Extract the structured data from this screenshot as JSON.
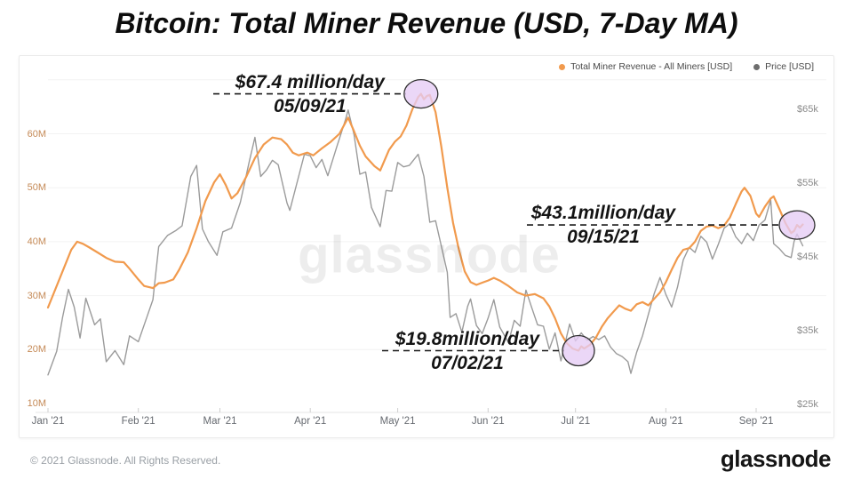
{
  "title": "Bitcoin: Total Miner Revenue (USD, 7-Day MA)",
  "watermark": "glassnode",
  "footer": {
    "copyright": "© 2021 Glassnode. All Rights Reserved.",
    "logo": "glassnode"
  },
  "legend": {
    "items": [
      {
        "label": "Total Miner Revenue - All Miners [USD]",
        "color": "#f19a4d"
      },
      {
        "label": "Price [USD]",
        "color": "#6e6e6e"
      }
    ]
  },
  "chart_data": {
    "type": "line",
    "title": "Bitcoin: Total Miner Revenue (USD, 7-Day MA)",
    "grid": "horizontal",
    "legend_position": "top-right",
    "x_axis": {
      "unit": "date (2021)",
      "labels": [
        {
          "day": 0,
          "label": "Jan '21"
        },
        {
          "day": 31,
          "label": "Feb '21"
        },
        {
          "day": 59,
          "label": "Mar '21"
        },
        {
          "day": 90,
          "label": "Apr '21"
        },
        {
          "day": 120,
          "label": "May '21"
        },
        {
          "day": 151,
          "label": "Jun '21"
        },
        {
          "day": 181,
          "label": "Jul '21"
        },
        {
          "day": 212,
          "label": "Aug '21"
        },
        {
          "day": 243,
          "label": "Sep '21"
        }
      ]
    },
    "y_left": {
      "unit": "USD million per day",
      "range": [
        10,
        70
      ],
      "ticks": [
        {
          "value": 10,
          "label": "10M"
        },
        {
          "value": 20,
          "label": "20M"
        },
        {
          "value": 30,
          "label": "30M"
        },
        {
          "value": 40,
          "label": "40M"
        },
        {
          "value": 50,
          "label": "50M"
        },
        {
          "value": 60,
          "label": "60M"
        }
      ]
    },
    "y_right": {
      "unit": "USD thousand",
      "range": [
        25,
        68
      ],
      "ticks": [
        {
          "value": 25,
          "label": "$25k"
        },
        {
          "value": 35,
          "label": "$35k"
        },
        {
          "value": 45,
          "label": "$45k"
        },
        {
          "value": 55,
          "label": "$55k"
        },
        {
          "value": 65,
          "label": "$65k"
        }
      ]
    },
    "series": [
      {
        "name": "Total Miner Revenue - All Miners [USD]",
        "axis": "left",
        "color": "#f19a4d",
        "width": 2.2,
        "points": [
          [
            "01/01",
            27.8
          ],
          [
            "01/03",
            30.5
          ],
          [
            "01/06",
            34.5
          ],
          [
            "01/09",
            38.5
          ],
          [
            "01/11",
            40.0
          ],
          [
            "01/13",
            39.6
          ],
          [
            "01/15",
            39.0
          ],
          [
            "01/18",
            38.0
          ],
          [
            "01/21",
            37.0
          ],
          [
            "01/24",
            36.3
          ],
          [
            "01/27",
            36.2
          ],
          [
            "01/29",
            35.0
          ],
          [
            "02/01",
            33.0
          ],
          [
            "02/03",
            31.8
          ],
          [
            "02/06",
            31.4
          ],
          [
            "02/08",
            32.3
          ],
          [
            "02/10",
            32.4
          ],
          [
            "02/13",
            33.0
          ],
          [
            "02/15",
            34.8
          ],
          [
            "02/18",
            38.0
          ],
          [
            "02/21",
            42.5
          ],
          [
            "02/24",
            47.5
          ],
          [
            "02/27",
            51.0
          ],
          [
            "03/01",
            52.5
          ],
          [
            "03/03",
            50.5
          ],
          [
            "03/05",
            48.0
          ],
          [
            "03/07",
            49.0
          ],
          [
            "03/10",
            52.0
          ],
          [
            "03/13",
            55.5
          ],
          [
            "03/16",
            58.0
          ],
          [
            "03/19",
            59.3
          ],
          [
            "03/22",
            59.0
          ],
          [
            "03/24",
            58.0
          ],
          [
            "03/26",
            56.5
          ],
          [
            "03/28",
            56.0
          ],
          [
            "03/31",
            56.5
          ],
          [
            "04/02",
            56.0
          ],
          [
            "04/05",
            57.3
          ],
          [
            "04/08",
            58.5
          ],
          [
            "04/11",
            60.0
          ],
          [
            "04/14",
            63.0
          ],
          [
            "04/16",
            60.5
          ],
          [
            "04/18",
            57.8
          ],
          [
            "04/20",
            55.8
          ],
          [
            "04/23",
            54.0
          ],
          [
            "04/25",
            53.2
          ],
          [
            "04/28",
            57.0
          ],
          [
            "04/30",
            58.5
          ],
          [
            "05/02",
            59.5
          ],
          [
            "05/04",
            61.5
          ],
          [
            "05/06",
            64.5
          ],
          [
            "05/08",
            66.8
          ],
          [
            "05/09",
            67.4
          ],
          [
            "05/10",
            66.4
          ],
          [
            "05/11",
            67.0
          ],
          [
            "05/12",
            67.2
          ],
          [
            "05/14",
            64.0
          ],
          [
            "05/16",
            57.5
          ],
          [
            "05/18",
            50.0
          ],
          [
            "05/20",
            43.5
          ],
          [
            "05/22",
            38.5
          ],
          [
            "05/24",
            34.5
          ],
          [
            "05/26",
            32.5
          ],
          [
            "05/28",
            32.0
          ],
          [
            "05/30",
            32.4
          ],
          [
            "06/01",
            32.8
          ],
          [
            "06/03",
            33.3
          ],
          [
            "06/05",
            32.8
          ],
          [
            "06/08",
            31.8
          ],
          [
            "06/11",
            30.6
          ],
          [
            "06/14",
            30.0
          ],
          [
            "06/17",
            30.3
          ],
          [
            "06/20",
            29.5
          ],
          [
            "06/22",
            28.0
          ],
          [
            "06/24",
            25.8
          ],
          [
            "06/26",
            23.0
          ],
          [
            "06/28",
            21.2
          ],
          [
            "06/30",
            20.2
          ],
          [
            "07/02",
            19.8
          ],
          [
            "07/03",
            20.6
          ],
          [
            "07/04",
            20.2
          ],
          [
            "07/06",
            20.9
          ],
          [
            "07/08",
            22.2
          ],
          [
            "07/10",
            24.2
          ],
          [
            "07/12",
            25.8
          ],
          [
            "07/14",
            27.0
          ],
          [
            "07/16",
            28.2
          ],
          [
            "07/18",
            27.6
          ],
          [
            "07/20",
            27.2
          ],
          [
            "07/22",
            28.4
          ],
          [
            "07/24",
            28.8
          ],
          [
            "07/26",
            28.2
          ],
          [
            "07/28",
            29.4
          ],
          [
            "07/30",
            30.6
          ],
          [
            "08/01",
            32.5
          ],
          [
            "08/03",
            34.8
          ],
          [
            "08/05",
            37.0
          ],
          [
            "08/07",
            38.5
          ],
          [
            "08/09",
            38.8
          ],
          [
            "08/11",
            40.0
          ],
          [
            "08/13",
            42.0
          ],
          [
            "08/15",
            42.8
          ],
          [
            "08/17",
            43.0
          ],
          [
            "08/19",
            42.5
          ],
          [
            "08/21",
            43.0
          ],
          [
            "08/23",
            44.5
          ],
          [
            "08/25",
            47.0
          ],
          [
            "08/27",
            49.3
          ],
          [
            "08/28",
            50.0
          ],
          [
            "08/30",
            48.5
          ],
          [
            "09/01",
            45.2
          ],
          [
            "09/02",
            44.6
          ],
          [
            "09/04",
            46.5
          ],
          [
            "09/06",
            48.0
          ],
          [
            "09/07",
            48.4
          ],
          [
            "09/09",
            46.0
          ],
          [
            "09/11",
            43.5
          ],
          [
            "09/13",
            41.6
          ],
          [
            "09/14",
            42.0
          ],
          [
            "09/15",
            43.1
          ],
          [
            "09/16",
            42.6
          ],
          [
            "09/17",
            43.2
          ]
        ]
      },
      {
        "name": "Price [USD]",
        "axis": "right",
        "color": "#9b9b9b",
        "width": 1.4,
        "points": [
          [
            "01/01",
            29.0
          ],
          [
            "01/04",
            32.2
          ],
          [
            "01/06",
            36.8
          ],
          [
            "01/08",
            40.6
          ],
          [
            "01/10",
            38.2
          ],
          [
            "01/12",
            34.0
          ],
          [
            "01/14",
            39.4
          ],
          [
            "01/17",
            35.8
          ],
          [
            "01/19",
            36.6
          ],
          [
            "01/21",
            30.8
          ],
          [
            "01/24",
            32.3
          ],
          [
            "01/27",
            30.4
          ],
          [
            "01/29",
            34.3
          ],
          [
            "02/01",
            33.5
          ],
          [
            "02/04",
            36.9
          ],
          [
            "02/06",
            39.2
          ],
          [
            "02/08",
            46.4
          ],
          [
            "02/11",
            47.9
          ],
          [
            "02/14",
            48.6
          ],
          [
            "02/16",
            49.2
          ],
          [
            "02/19",
            55.9
          ],
          [
            "02/21",
            57.4
          ],
          [
            "02/23",
            48.8
          ],
          [
            "02/25",
            47.1
          ],
          [
            "02/28",
            45.2
          ],
          [
            "03/02",
            48.4
          ],
          [
            "03/05",
            48.9
          ],
          [
            "03/08",
            52.4
          ],
          [
            "03/11",
            57.8
          ],
          [
            "03/13",
            61.2
          ],
          [
            "03/15",
            55.9
          ],
          [
            "03/17",
            56.8
          ],
          [
            "03/19",
            58.1
          ],
          [
            "03/21",
            57.5
          ],
          [
            "03/24",
            52.3
          ],
          [
            "03/25",
            51.3
          ],
          [
            "03/28",
            55.9
          ],
          [
            "03/30",
            58.9
          ],
          [
            "04/01",
            58.7
          ],
          [
            "04/03",
            57.1
          ],
          [
            "04/05",
            58.2
          ],
          [
            "04/07",
            56.0
          ],
          [
            "04/10",
            59.8
          ],
          [
            "04/13",
            63.5
          ],
          [
            "04/14",
            64.9
          ],
          [
            "04/16",
            61.6
          ],
          [
            "04/18",
            56.2
          ],
          [
            "04/20",
            56.5
          ],
          [
            "04/22",
            51.7
          ],
          [
            "04/25",
            49.1
          ],
          [
            "04/27",
            54.0
          ],
          [
            "04/29",
            53.9
          ],
          [
            "05/01",
            57.8
          ],
          [
            "05/03",
            57.2
          ],
          [
            "05/05",
            57.4
          ],
          [
            "05/08",
            58.9
          ],
          [
            "05/10",
            55.9
          ],
          [
            "05/12",
            49.7
          ],
          [
            "05/14",
            49.9
          ],
          [
            "05/16",
            46.4
          ],
          [
            "05/18",
            42.9
          ],
          [
            "05/19",
            36.8
          ],
          [
            "05/21",
            37.3
          ],
          [
            "05/23",
            34.8
          ],
          [
            "05/25",
            38.3
          ],
          [
            "05/26",
            39.3
          ],
          [
            "05/28",
            35.7
          ],
          [
            "05/30",
            34.6
          ],
          [
            "06/01",
            36.7
          ],
          [
            "06/03",
            39.2
          ],
          [
            "06/05",
            35.5
          ],
          [
            "06/08",
            33.4
          ],
          [
            "06/10",
            36.4
          ],
          [
            "06/12",
            35.6
          ],
          [
            "06/14",
            40.5
          ],
          [
            "06/16",
            38.1
          ],
          [
            "06/18",
            35.8
          ],
          [
            "06/20",
            35.6
          ],
          [
            "06/22",
            32.5
          ],
          [
            "06/24",
            34.7
          ],
          [
            "06/26",
            30.9
          ],
          [
            "06/29",
            35.9
          ],
          [
            "07/01",
            33.6
          ],
          [
            "07/03",
            34.7
          ],
          [
            "07/05",
            33.7
          ],
          [
            "07/07",
            34.2
          ],
          [
            "07/09",
            33.8
          ],
          [
            "07/11",
            34.3
          ],
          [
            "07/13",
            32.8
          ],
          [
            "07/15",
            31.9
          ],
          [
            "07/17",
            31.5
          ],
          [
            "07/19",
            30.8
          ],
          [
            "07/20",
            29.2
          ],
          [
            "07/22",
            32.1
          ],
          [
            "07/24",
            34.3
          ],
          [
            "07/26",
            37.2
          ],
          [
            "07/28",
            40.0
          ],
          [
            "07/30",
            42.2
          ],
          [
            "08/01",
            39.9
          ],
          [
            "08/03",
            38.2
          ],
          [
            "08/05",
            40.9
          ],
          [
            "08/07",
            44.6
          ],
          [
            "08/09",
            46.3
          ],
          [
            "08/11",
            45.6
          ],
          [
            "08/13",
            47.8
          ],
          [
            "08/15",
            47.0
          ],
          [
            "08/17",
            44.7
          ],
          [
            "08/19",
            46.7
          ],
          [
            "08/21",
            48.9
          ],
          [
            "08/23",
            49.5
          ],
          [
            "08/25",
            47.7
          ],
          [
            "08/27",
            46.8
          ],
          [
            "08/29",
            48.2
          ],
          [
            "08/31",
            47.2
          ],
          [
            "09/02",
            49.3
          ],
          [
            "09/04",
            50.0
          ],
          [
            "09/06",
            52.7
          ],
          [
            "09/07",
            46.8
          ],
          [
            "09/09",
            46.1
          ],
          [
            "09/11",
            45.2
          ],
          [
            "09/13",
            44.9
          ],
          [
            "09/14",
            47.1
          ],
          [
            "09/15",
            48.1
          ],
          [
            "09/17",
            46.5
          ]
        ]
      }
    ],
    "annotations": [
      {
        "label": "$67.4 million/day",
        "date_label": "05/09/21",
        "date": "05/09",
        "value": 67.4,
        "series": "Total Miner Revenue - All Miners [USD]"
      },
      {
        "label": "$43.1million/day",
        "date_label": "09/15/21",
        "date": "09/15",
        "value": 43.1,
        "series": "Total Miner Revenue - All Miners [USD]"
      },
      {
        "label": "$19.8million/day",
        "date_label": "07/02/21",
        "date": "07/02",
        "value": 19.8,
        "series": "Total Miner Revenue - All Miners [USD]"
      }
    ]
  }
}
